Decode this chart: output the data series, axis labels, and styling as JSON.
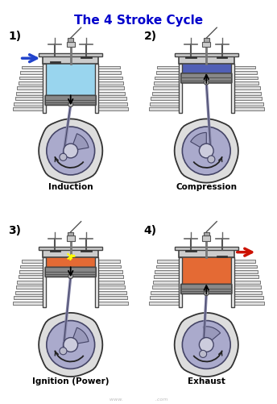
{
  "title": "The 4 Stroke Cycle",
  "title_color": "#0000CC",
  "title_fontsize": 11,
  "title_weight": "bold",
  "bg_color": "#FFFFFF",
  "labels": [
    "1)",
    "2)",
    "3)",
    "4)"
  ],
  "stroke_names": [
    "Induction",
    "Compression",
    "Ignition (Power)",
    "Exhaust"
  ],
  "cylinder_fill_colors": [
    "#87CEEB",
    "#3344AA",
    "#E05010",
    "#E05010"
  ],
  "label_fontsize": 10,
  "stroke_name_fontsize": 7.5,
  "arrow1_color": "#2244CC",
  "arrow4_color": "#CC1100",
  "piston_color": "#888888",
  "piston_edge": "#444444",
  "fin_color": "#666666",
  "fin_bg": "#DDDDDD",
  "crank_color": "#AAAACC",
  "crank_edge": "#444466",
  "head_color": "#CCCCCC",
  "head_edge": "#444444",
  "wall_color": "#EEEEEE",
  "wall_edge": "#444444",
  "case_color": "#DDDDDD",
  "case_edge": "#333333",
  "rod_color": "#8888AA",
  "watermark": "www.                    .com",
  "piston_tops": [
    7.5,
    9.2,
    9.2,
    7.9
  ],
  "arrow_dirs": [
    -1,
    1,
    -1,
    1
  ],
  "crank_pin_angles": [
    220,
    300,
    220,
    250
  ]
}
